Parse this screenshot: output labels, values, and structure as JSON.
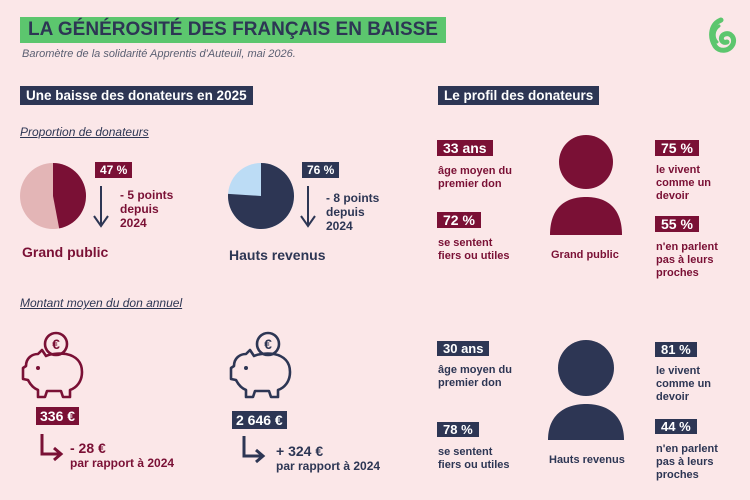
{
  "header": {
    "title": "LA GÉNÉROSITÉ DES FRANÇAIS EN BAISSE",
    "subtitle": "Baromètre de la solidarité Apprentis d'Auteuil, mai 2026."
  },
  "colors": {
    "maroon": "#7a1035",
    "navy": "#2d3654",
    "green": "#5cc66e",
    "light_blue": "#bcdcf5",
    "pink_light": "#e3b5b6",
    "background": "#fbe7e8"
  },
  "left": {
    "section_title": "Une baisse des donateurs en 2025",
    "proportion_label": "Proportion de donateurs",
    "general": {
      "pct": "47 %",
      "pct_value": 47,
      "change_line1": "- 5 points",
      "change_line2": "depuis",
      "change_line3": "2024",
      "group": "Grand public"
    },
    "high": {
      "pct": "76 %",
      "pct_value": 76,
      "change_line1": "- 8 points",
      "change_line2": "depuis",
      "change_line3": "2024",
      "group": "Hauts revenus"
    },
    "donation_label": "Montant moyen du don annuel",
    "don_general": {
      "amount": "336 €",
      "change_amount": "- 28 €",
      "change_text": "par rapport à 2024",
      "icon": "piggy-bank-euro-icon"
    },
    "don_high": {
      "amount": "2 646 €",
      "change_amount": "+ 324 €",
      "change_text": "par rapport à 2024",
      "icon": "piggy-bank-euro-icon"
    }
  },
  "right": {
    "section_title": "Le profil des donateurs",
    "general": {
      "age": "33 ans",
      "age_text_1": "âge moyen du",
      "age_text_2": "premier don",
      "proud": "72 %",
      "proud_text_1": "se sentent",
      "proud_text_2": "fiers ou utiles",
      "duty": "75 %",
      "duty_text_1": "le vivent",
      "duty_text_2": "comme un",
      "duty_text_3": "devoir",
      "talk": "55 %",
      "talk_text_1": "n'en parlent",
      "talk_text_2": "pas à leurs",
      "talk_text_3": "proches",
      "label": "Grand public"
    },
    "high": {
      "age": "30 ans",
      "age_text_1": "âge moyen du",
      "age_text_2": "premier don",
      "proud": "78 %",
      "proud_text_1": "se sentent",
      "proud_text_2": "fiers ou utiles",
      "duty": "81 %",
      "duty_text_1": "le vivent",
      "duty_text_2": "comme un",
      "duty_text_3": "devoir",
      "talk": "44 %",
      "talk_text_1": "n'en parlent",
      "talk_text_2": "pas à leurs",
      "talk_text_3": "proches",
      "label": "Hauts revenus"
    }
  }
}
